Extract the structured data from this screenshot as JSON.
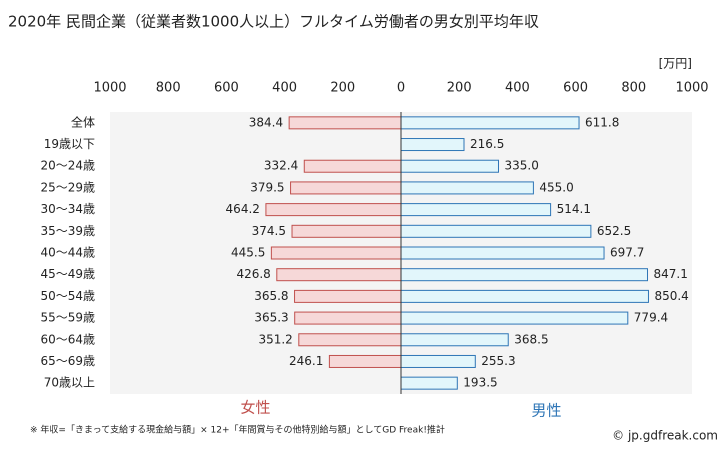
{
  "chart_data": {
    "type": "butterfly-bar",
    "title": "2020年 民間企業（従業者数1000人以上）フルタイム労働者の男女別平均年収",
    "unit_label": "[万円]",
    "categories": [
      "全体",
      "19歳以下",
      "20～24歳",
      "25～29歳",
      "30～34歳",
      "35～39歳",
      "40～44歳",
      "45～49歳",
      "50～54歳",
      "55～59歳",
      "60～64歳",
      "65～69歳",
      "70歳以上"
    ],
    "series": [
      {
        "name": "女性",
        "side": "left",
        "color": "#f6d8d8",
        "stroke": "#c0504d",
        "label_color": "#c0504d",
        "values": [
          384.4,
          null,
          332.4,
          379.5,
          464.2,
          374.5,
          445.5,
          426.8,
          365.8,
          365.3,
          351.2,
          246.1,
          null
        ],
        "value_labels": [
          "384.4",
          null,
          "332.4",
          "379.5",
          "464.2",
          "374.5",
          "445.5",
          "426.8",
          "365.8",
          "365.3",
          "351.2",
          "246.1",
          null
        ]
      },
      {
        "name": "男性",
        "side": "right",
        "color": "#e2f6fb",
        "stroke": "#2e75b6",
        "label_color": "#2e75b6",
        "values": [
          611.8,
          216.5,
          335.0,
          455.0,
          514.1,
          652.5,
          697.7,
          847.1,
          850.4,
          779.4,
          368.5,
          255.3,
          193.5
        ],
        "value_labels": [
          "611.8",
          "216.5",
          "335.0",
          "455.0",
          "514.1",
          "652.5",
          "697.7",
          "847.1",
          "850.4",
          "779.4",
          "368.5",
          "255.3",
          "193.5"
        ]
      }
    ],
    "xlim": [
      -1000,
      1000
    ],
    "xticks": [
      {
        "value": -1000,
        "label": "1000"
      },
      {
        "value": -800,
        "label": "800"
      },
      {
        "value": -600,
        "label": "600"
      },
      {
        "value": -400,
        "label": "400"
      },
      {
        "value": -200,
        "label": "200"
      },
      0,
      200,
      400,
      600,
      800,
      1000
    ],
    "grid": false,
    "footnote": "※ 年収=「きまって支給する現金給与額」× 12+「年間賞与その他特別給与額」としてGD Freak!推計",
    "credit": "© jp.gdfreak.com"
  }
}
